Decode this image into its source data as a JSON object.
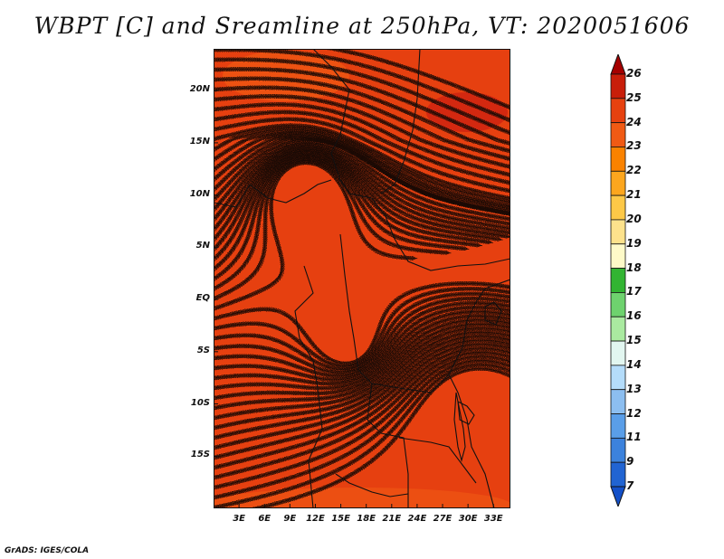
{
  "title": "WBPT [C] and Sreamline at 250hPa, VT: 2020051606",
  "footer": "GrADS: IGES/COLA",
  "map": {
    "lon_range": [
      0,
      35
    ],
    "lat_range": [
      -20,
      24
    ],
    "lat_labels": [
      {
        "value": 20,
        "text": "20N"
      },
      {
        "value": 15,
        "text": "15N"
      },
      {
        "value": 10,
        "text": "10N"
      },
      {
        "value": 5,
        "text": "5N"
      },
      {
        "value": 0,
        "text": "EQ"
      },
      {
        "value": -5,
        "text": "5S"
      },
      {
        "value": -10,
        "text": "10S"
      },
      {
        "value": -15,
        "text": "15S"
      }
    ],
    "lon_labels": [
      {
        "value": 3,
        "text": "3E"
      },
      {
        "value": 6,
        "text": "6E"
      },
      {
        "value": 9,
        "text": "9E"
      },
      {
        "value": 12,
        "text": "12E"
      },
      {
        "value": 15,
        "text": "15E"
      },
      {
        "value": 18,
        "text": "18E"
      },
      {
        "value": 21,
        "text": "21E"
      },
      {
        "value": 24,
        "text": "24E"
      },
      {
        "value": 27,
        "text": "27E"
      },
      {
        "value": 30,
        "text": "30E"
      },
      {
        "value": 33,
        "text": "33E"
      }
    ],
    "field_base_color": "#e64010",
    "field_patches": [
      {
        "color": "#f05a14",
        "label": "north-west warm patch"
      },
      {
        "color": "#cc2010",
        "label": "north-east high patch"
      },
      {
        "color": "#f05a14",
        "label": "south edge patch"
      }
    ],
    "streamline_color": "#1a0a05",
    "border_color": "#111111"
  },
  "colorbar": {
    "levels": [
      "26",
      "25",
      "24",
      "23",
      "22",
      "21",
      "20",
      "19",
      "18",
      "17",
      "16",
      "15",
      "14",
      "13",
      "12",
      "11",
      "9",
      "7"
    ],
    "colors": [
      "#a50000",
      "#c81e0a",
      "#e6410f",
      "#f05a14",
      "#fa8200",
      "#fca61e",
      "#fdc847",
      "#fde28c",
      "#fefac8",
      "#32b432",
      "#6ed26e",
      "#aaeaa0",
      "#e2f6f0",
      "#b4dcfa",
      "#8cbef0",
      "#5a9ee8",
      "#3c82dc",
      "#2164d2",
      "#1450c8"
    ]
  }
}
